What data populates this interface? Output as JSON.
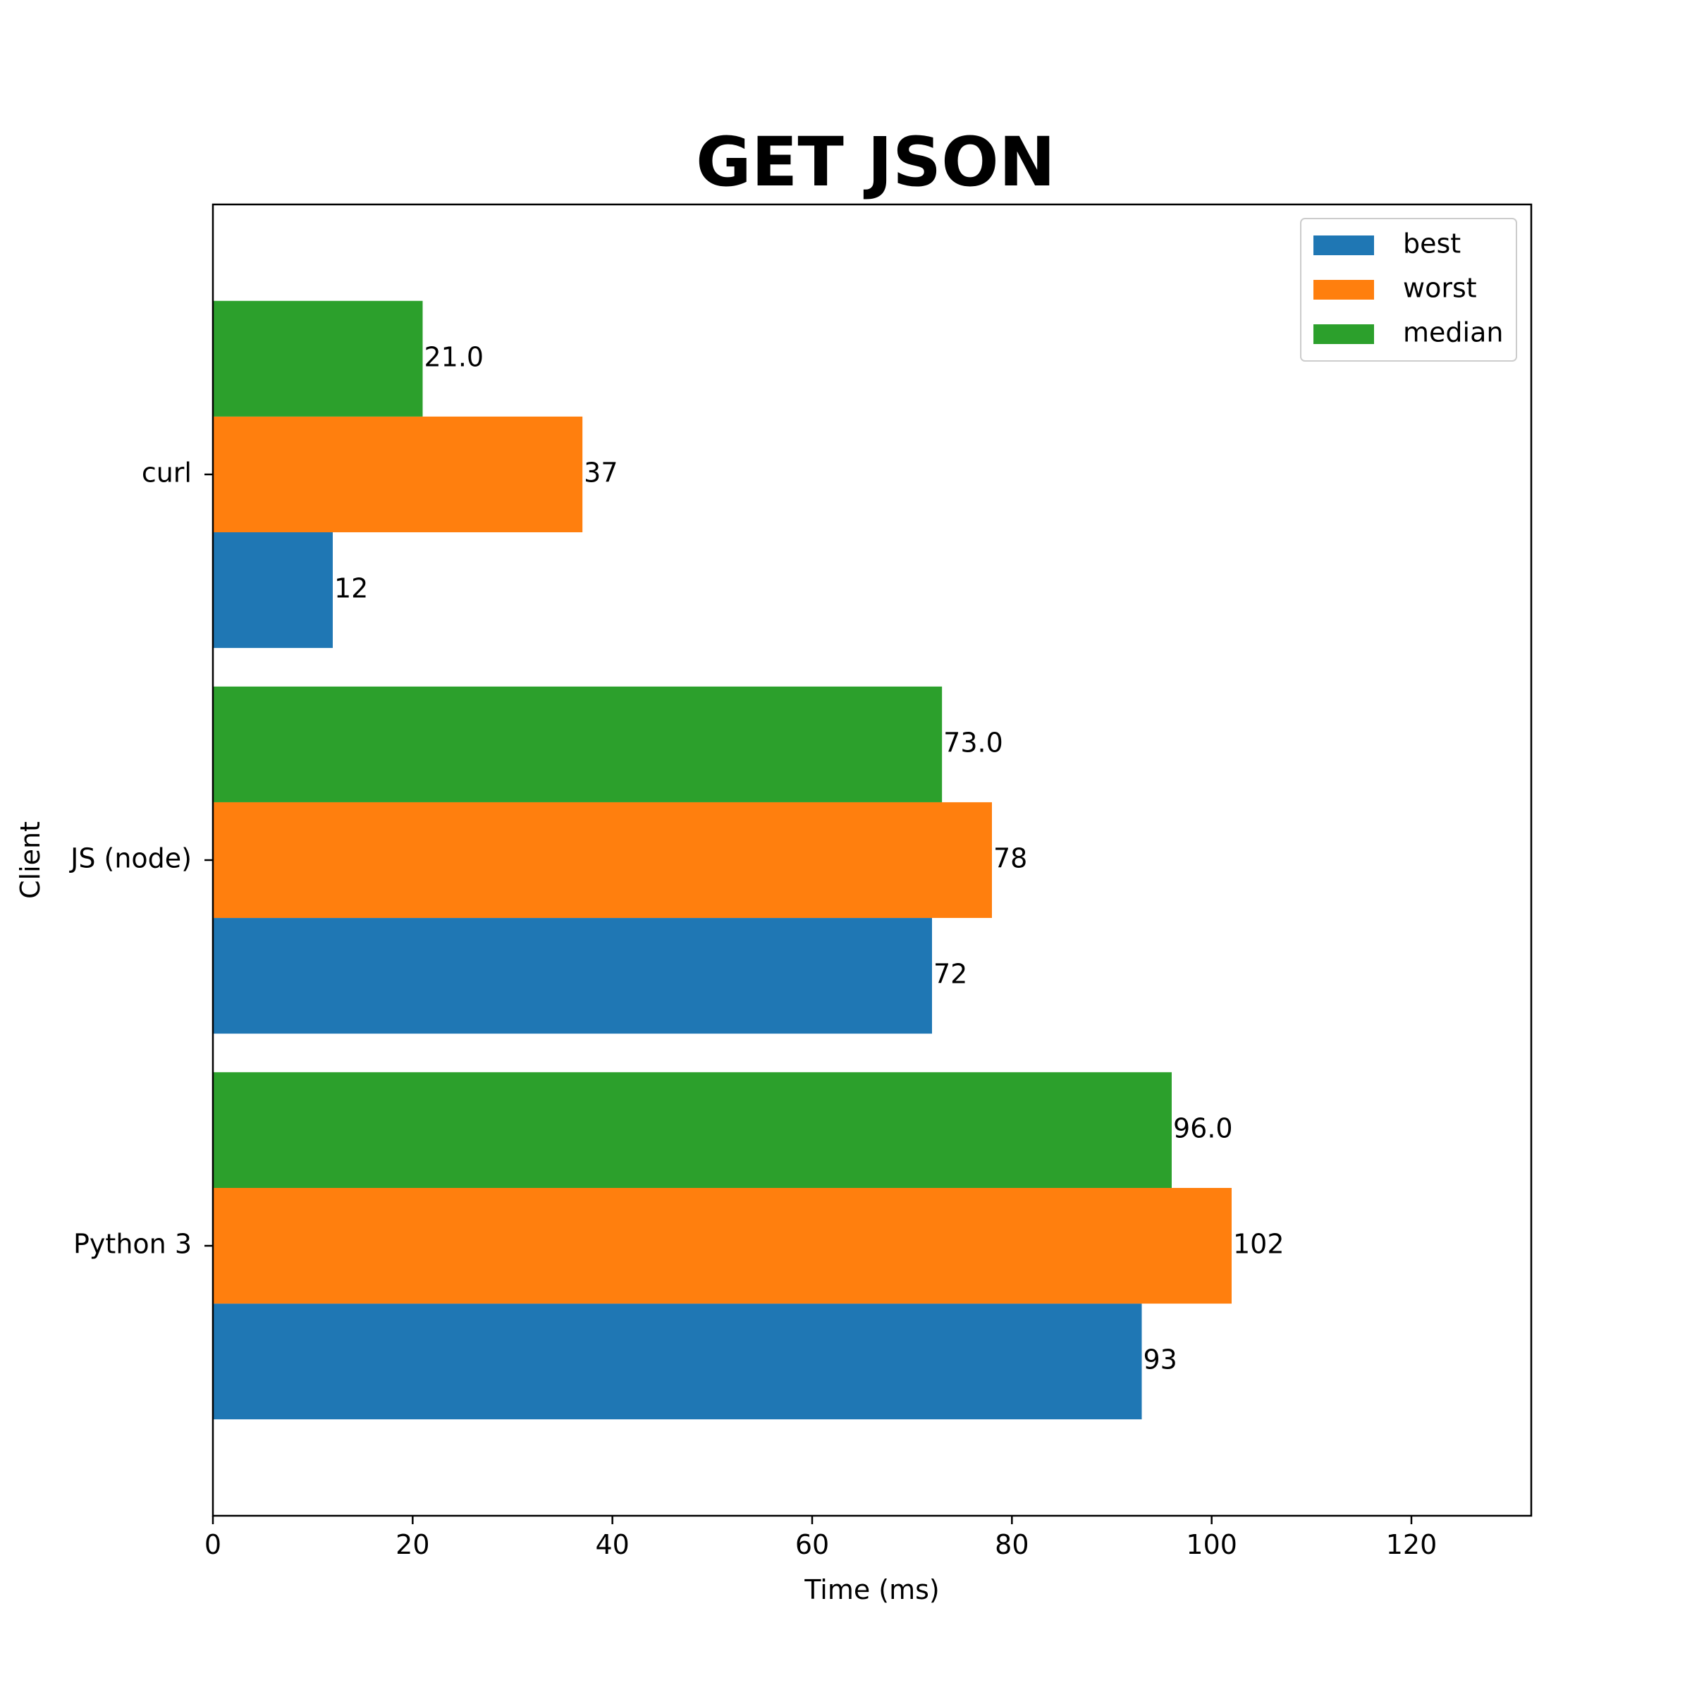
{
  "chart_data": {
    "type": "bar",
    "orientation": "horizontal",
    "title": "GET JSON",
    "xlabel": "Time (ms)",
    "ylabel": "Client",
    "categories": [
      "curl",
      "JS (node)",
      "Python 3"
    ],
    "xlim": [
      0,
      132
    ],
    "xticks": [
      0,
      20,
      40,
      60,
      80,
      100,
      120
    ],
    "grid": false,
    "legend_position": "top-right",
    "series": [
      {
        "name": "best",
        "color": "#1f77b4",
        "values": [
          12,
          72,
          93
        ],
        "labels": [
          "12",
          "72",
          "93"
        ]
      },
      {
        "name": "worst",
        "color": "#ff7f0e",
        "values": [
          37,
          78,
          102
        ],
        "labels": [
          "37",
          "78",
          "102"
        ]
      },
      {
        "name": "median",
        "color": "#2ca02c",
        "values": [
          21.0,
          73.0,
          96.0
        ],
        "labels": [
          "21.0",
          "73.0",
          "96.0"
        ]
      }
    ]
  }
}
